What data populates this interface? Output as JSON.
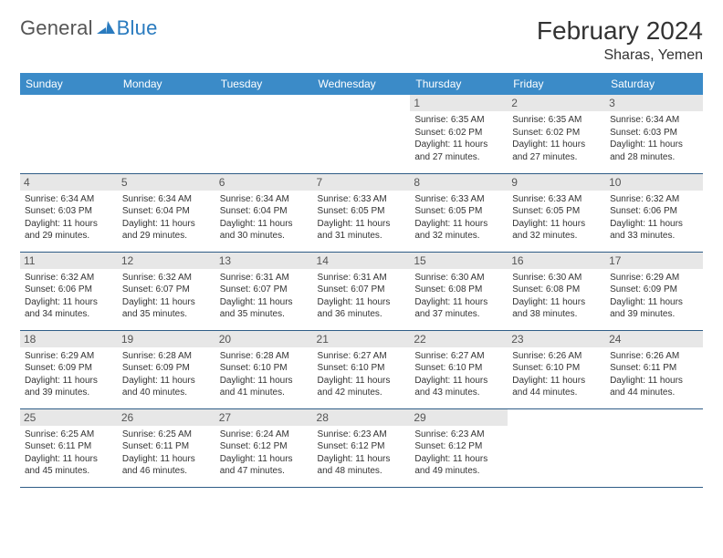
{
  "logo": {
    "text_general": "General",
    "text_blue": "Blue",
    "glyph_color": "#2a7bbf"
  },
  "header": {
    "month_title": "February 2024",
    "location": "Sharas, Yemen"
  },
  "calendar": {
    "header_bg": "#3b8bc8",
    "header_fg": "#ffffff",
    "daynum_bg": "#e7e7e7",
    "row_border": "#2f5d87",
    "day_headers": [
      "Sunday",
      "Monday",
      "Tuesday",
      "Wednesday",
      "Thursday",
      "Friday",
      "Saturday"
    ],
    "weeks": [
      [
        null,
        null,
        null,
        null,
        {
          "d": "1",
          "sunrise": "6:35 AM",
          "sunset": "6:02 PM",
          "daylight": "11 hours and 27 minutes."
        },
        {
          "d": "2",
          "sunrise": "6:35 AM",
          "sunset": "6:02 PM",
          "daylight": "11 hours and 27 minutes."
        },
        {
          "d": "3",
          "sunrise": "6:34 AM",
          "sunset": "6:03 PM",
          "daylight": "11 hours and 28 minutes."
        }
      ],
      [
        {
          "d": "4",
          "sunrise": "6:34 AM",
          "sunset": "6:03 PM",
          "daylight": "11 hours and 29 minutes."
        },
        {
          "d": "5",
          "sunrise": "6:34 AM",
          "sunset": "6:04 PM",
          "daylight": "11 hours and 29 minutes."
        },
        {
          "d": "6",
          "sunrise": "6:34 AM",
          "sunset": "6:04 PM",
          "daylight": "11 hours and 30 minutes."
        },
        {
          "d": "7",
          "sunrise": "6:33 AM",
          "sunset": "6:05 PM",
          "daylight": "11 hours and 31 minutes."
        },
        {
          "d": "8",
          "sunrise": "6:33 AM",
          "sunset": "6:05 PM",
          "daylight": "11 hours and 32 minutes."
        },
        {
          "d": "9",
          "sunrise": "6:33 AM",
          "sunset": "6:05 PM",
          "daylight": "11 hours and 32 minutes."
        },
        {
          "d": "10",
          "sunrise": "6:32 AM",
          "sunset": "6:06 PM",
          "daylight": "11 hours and 33 minutes."
        }
      ],
      [
        {
          "d": "11",
          "sunrise": "6:32 AM",
          "sunset": "6:06 PM",
          "daylight": "11 hours and 34 minutes."
        },
        {
          "d": "12",
          "sunrise": "6:32 AM",
          "sunset": "6:07 PM",
          "daylight": "11 hours and 35 minutes."
        },
        {
          "d": "13",
          "sunrise": "6:31 AM",
          "sunset": "6:07 PM",
          "daylight": "11 hours and 35 minutes."
        },
        {
          "d": "14",
          "sunrise": "6:31 AM",
          "sunset": "6:07 PM",
          "daylight": "11 hours and 36 minutes."
        },
        {
          "d": "15",
          "sunrise": "6:30 AM",
          "sunset": "6:08 PM",
          "daylight": "11 hours and 37 minutes."
        },
        {
          "d": "16",
          "sunrise": "6:30 AM",
          "sunset": "6:08 PM",
          "daylight": "11 hours and 38 minutes."
        },
        {
          "d": "17",
          "sunrise": "6:29 AM",
          "sunset": "6:09 PM",
          "daylight": "11 hours and 39 minutes."
        }
      ],
      [
        {
          "d": "18",
          "sunrise": "6:29 AM",
          "sunset": "6:09 PM",
          "daylight": "11 hours and 39 minutes."
        },
        {
          "d": "19",
          "sunrise": "6:28 AM",
          "sunset": "6:09 PM",
          "daylight": "11 hours and 40 minutes."
        },
        {
          "d": "20",
          "sunrise": "6:28 AM",
          "sunset": "6:10 PM",
          "daylight": "11 hours and 41 minutes."
        },
        {
          "d": "21",
          "sunrise": "6:27 AM",
          "sunset": "6:10 PM",
          "daylight": "11 hours and 42 minutes."
        },
        {
          "d": "22",
          "sunrise": "6:27 AM",
          "sunset": "6:10 PM",
          "daylight": "11 hours and 43 minutes."
        },
        {
          "d": "23",
          "sunrise": "6:26 AM",
          "sunset": "6:10 PM",
          "daylight": "11 hours and 44 minutes."
        },
        {
          "d": "24",
          "sunrise": "6:26 AM",
          "sunset": "6:11 PM",
          "daylight": "11 hours and 44 minutes."
        }
      ],
      [
        {
          "d": "25",
          "sunrise": "6:25 AM",
          "sunset": "6:11 PM",
          "daylight": "11 hours and 45 minutes."
        },
        {
          "d": "26",
          "sunrise": "6:25 AM",
          "sunset": "6:11 PM",
          "daylight": "11 hours and 46 minutes."
        },
        {
          "d": "27",
          "sunrise": "6:24 AM",
          "sunset": "6:12 PM",
          "daylight": "11 hours and 47 minutes."
        },
        {
          "d": "28",
          "sunrise": "6:23 AM",
          "sunset": "6:12 PM",
          "daylight": "11 hours and 48 minutes."
        },
        {
          "d": "29",
          "sunrise": "6:23 AM",
          "sunset": "6:12 PM",
          "daylight": "11 hours and 49 minutes."
        },
        null,
        null
      ]
    ],
    "labels": {
      "sunrise_prefix": "Sunrise: ",
      "sunset_prefix": "Sunset: ",
      "daylight_prefix": "Daylight: "
    }
  }
}
